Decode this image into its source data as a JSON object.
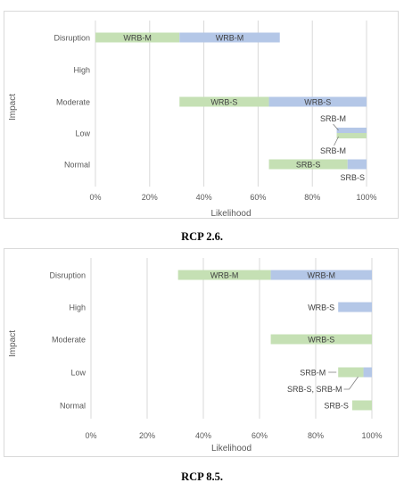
{
  "colors": {
    "green": "#c5e0b4",
    "blue": "#b4c7e7",
    "grid": "#d9d9d9",
    "text": "#595959",
    "label": "#404040"
  },
  "chart_data": [
    {
      "type": "bar",
      "orientation": "horizontal",
      "stacked": true,
      "caption": "RCP 2.6.",
      "xlabel": "Likelihood",
      "ylabel": "Impact",
      "xlim": [
        0,
        100
      ],
      "grid": true,
      "categories": [
        "Disruption",
        "High",
        "Moderate",
        "Low",
        "Normal"
      ],
      "xticks": [
        "0%",
        "20%",
        "40%",
        "60%",
        "80%",
        "100%"
      ],
      "bars": [
        {
          "category": "Disruption",
          "start": 0,
          "end": 31,
          "color": "green",
          "label": "WRB-M",
          "label_pos": "inside"
        },
        {
          "category": "Disruption",
          "start": 31,
          "end": 68,
          "color": "blue",
          "label": "WRB-M",
          "label_pos": "inside"
        },
        {
          "category": "Moderate",
          "start": 31,
          "end": 64,
          "color": "green",
          "label": "WRB-S",
          "label_pos": "inside"
        },
        {
          "category": "Moderate",
          "start": 64,
          "end": 100,
          "color": "blue",
          "label": "WRB-S",
          "label_pos": "inside"
        },
        {
          "category": "Low",
          "start": 89,
          "end": 100,
          "color": "blue",
          "label": "SRB-M",
          "label_pos": "callout-above"
        },
        {
          "category": "Low",
          "start": 89,
          "end": 100,
          "color": "green",
          "label": "SRB-M",
          "label_pos": "callout-below"
        },
        {
          "category": "Normal",
          "start": 64,
          "end": 93,
          "color": "green",
          "label": "SRB-S",
          "label_pos": "inside"
        },
        {
          "category": "Normal",
          "start": 93,
          "end": 100,
          "color": "blue",
          "label": "SRB-S",
          "label_pos": "below"
        }
      ]
    },
    {
      "type": "bar",
      "orientation": "horizontal",
      "stacked": true,
      "caption": "RCP 8.5.",
      "xlabel": "Likelihood",
      "ylabel": "Impact",
      "xlim": [
        0,
        100
      ],
      "grid": true,
      "categories": [
        "Disruption",
        "High",
        "Moderate",
        "Low",
        "Normal"
      ],
      "xticks": [
        "0%",
        "20%",
        "40%",
        "60%",
        "80%",
        "100%"
      ],
      "bars": [
        {
          "category": "Disruption",
          "start": 31,
          "end": 64,
          "color": "green",
          "label": "WRB-M",
          "label_pos": "inside"
        },
        {
          "category": "Disruption",
          "start": 64,
          "end": 100,
          "color": "blue",
          "label": "WRB-M",
          "label_pos": "inside"
        },
        {
          "category": "High",
          "start": 88,
          "end": 100,
          "color": "blue",
          "label": "WRB-S",
          "label_pos": "left"
        },
        {
          "category": "Moderate",
          "start": 64,
          "end": 100,
          "color": "green",
          "label": "WRB-S",
          "label_pos": "inside"
        },
        {
          "category": "Low",
          "start": 88,
          "end": 97,
          "color": "green",
          "label": "SRB-M",
          "label_pos": "callout-left"
        },
        {
          "category": "Low",
          "start": 97,
          "end": 100,
          "color": "blue",
          "label": "SRB-S, SRB-M",
          "label_pos": "callout-below"
        },
        {
          "category": "Normal",
          "start": 93,
          "end": 100,
          "color": "green",
          "label": "SRB-S",
          "label_pos": "left"
        }
      ]
    }
  ]
}
